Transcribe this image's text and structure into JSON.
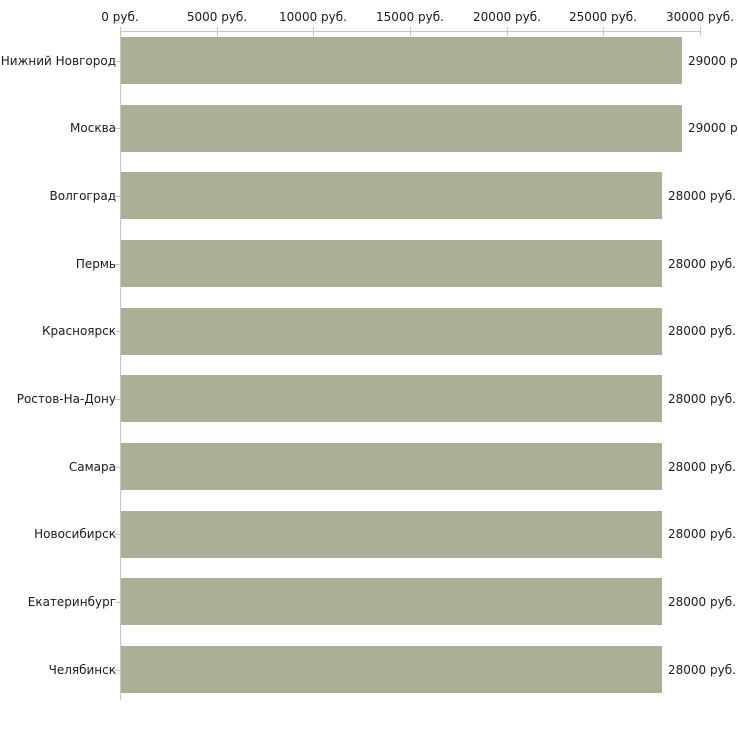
{
  "chart_data": {
    "type": "bar",
    "orientation": "horizontal",
    "title": "",
    "xlabel": "",
    "ylabel": "",
    "categories": [
      "Нижний Новгород",
      "Москва",
      "Волгоград",
      "Пермь",
      "Красноярск",
      "Ростов-На-Дону",
      "Самара",
      "Новосибирск",
      "Екатеринбург",
      "Челябинск"
    ],
    "values": [
      29000,
      29000,
      28000,
      28000,
      28000,
      28000,
      28000,
      28000,
      28000,
      28000
    ],
    "value_labels": [
      "29000 р",
      "29000 р",
      "28000 руб.",
      "28000 руб.",
      "28000 руб.",
      "28000 руб.",
      "28000 руб.",
      "28000 руб.",
      "28000 руб.",
      "28000 руб."
    ],
    "x_ticks": [
      0,
      5000,
      10000,
      15000,
      20000,
      25000,
      30000
    ],
    "x_tick_labels": [
      "0 руб.",
      "5000 руб.",
      "10000 руб.",
      "15000 руб.",
      "20000 руб.",
      "25000 руб.",
      "30000 руб."
    ],
    "xlim": [
      0,
      30000
    ],
    "grid": false,
    "legend": false,
    "axis_position": "top",
    "colors": {
      "bar": "#abaf96",
      "axis_line": "#c6c6c6",
      "tick": "#c9c9a3",
      "text": "#1a1a1a",
      "background": "#ffffff"
    }
  }
}
